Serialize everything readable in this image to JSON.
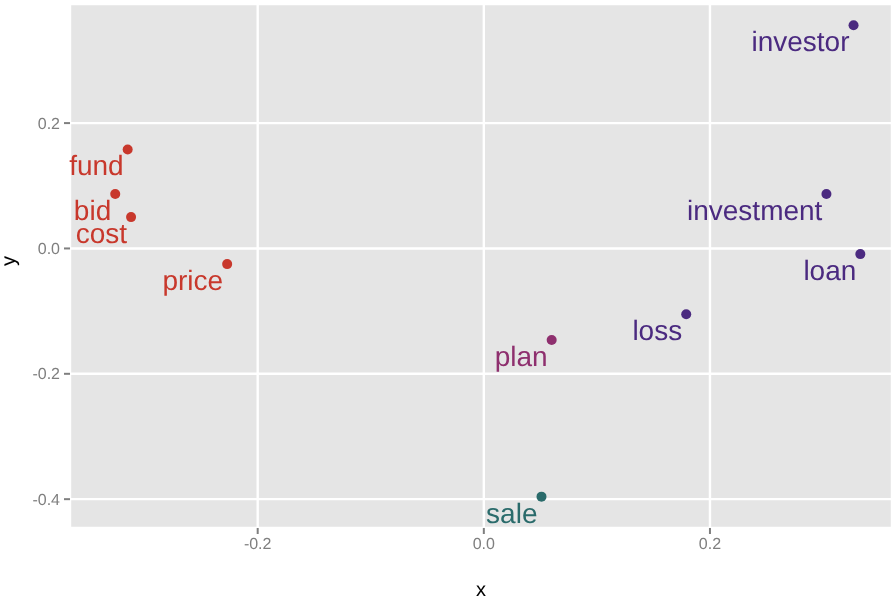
{
  "chart_data": {
    "type": "scatter",
    "xlabel": "x",
    "ylabel": "y",
    "xlim": [
      -0.366,
      0.361
    ],
    "ylim": [
      -0.446,
      0.39
    ],
    "xticks": [
      -0.2,
      {
        "value": 0,
        "label": "0.0"
      },
      0.2
    ],
    "yticks": [
      -0.4,
      -0.2,
      {
        "value": 0,
        "label": "0.0"
      },
      0.2
    ],
    "grid": true,
    "legend": false,
    "marker": "circle",
    "series": [
      {
        "color": "#c8382c",
        "x": [
          -0.315,
          -0.326,
          -0.312,
          -0.227
        ],
        "values": [
          0.158,
          0.087,
          0.05,
          -0.025
        ],
        "value_labels": [
          "fund",
          "bid",
          "cost",
          "price"
        ]
      },
      {
        "color": "#4b2a80",
        "x": [
          0.327,
          0.303,
          0.333,
          0.179
        ],
        "values": [
          0.356,
          0.087,
          -0.009,
          -0.105
        ],
        "value_labels": [
          "investor",
          "investment",
          "loan",
          "loss"
        ]
      },
      {
        "color": "#8e2f6e",
        "x": [
          0.06
        ],
        "values": [
          -0.146
        ],
        "value_labels": [
          "plan"
        ]
      },
      {
        "color": "#2a6b6b",
        "x": [
          0.051
        ],
        "values": [
          -0.396
        ],
        "value_labels": [
          "sale"
        ]
      }
    ]
  }
}
